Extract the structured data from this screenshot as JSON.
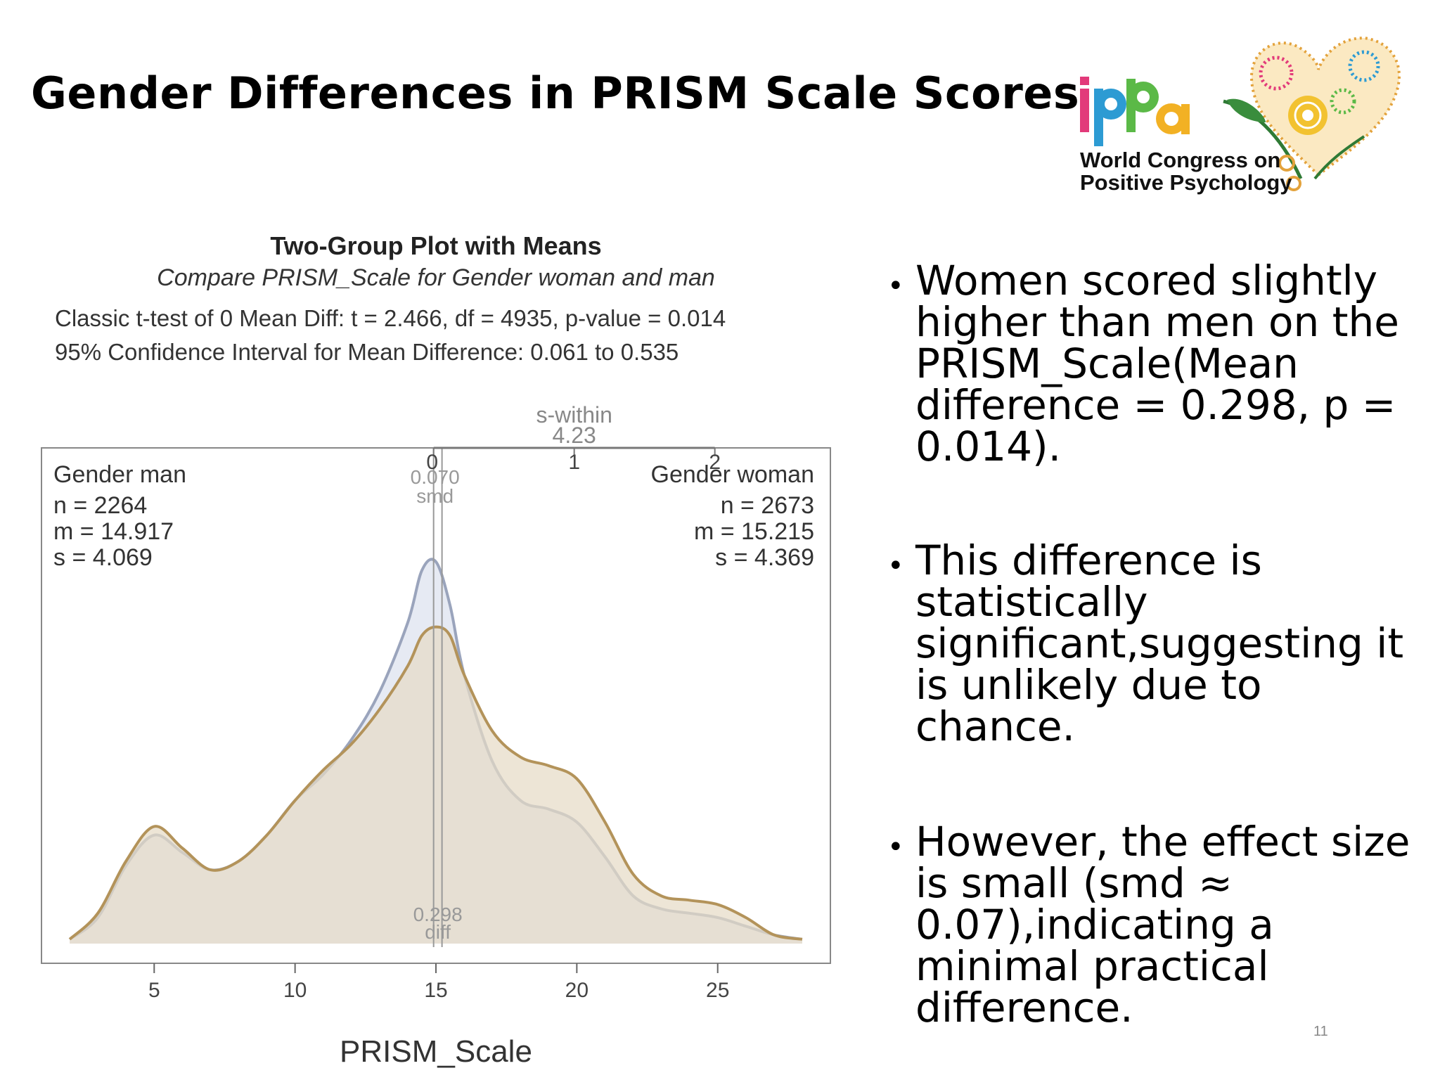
{
  "slide": {
    "title": "Gender Differences in PRISM Scale Scores",
    "page_number": "11",
    "logo": {
      "mark": "ippa",
      "line1": "World Congress on",
      "line2": "Positive Psychology",
      "icon": "heart-flower-icon"
    },
    "bullets": [
      "Women scored slightly higher than men on the PRISM_Scale(Mean difference = 0.298, p = 0.014).",
      "This difference is statistically significant,suggesting it is unlikely due to chance.",
      "However, the effect size is small (smd ≈ 0.07),indicating a minimal practical difference."
    ]
  },
  "chart_data": {
    "type": "area",
    "title": "Two-Group Plot with Means",
    "subtitle": "Compare PRISM_Scale for Gender woman and man",
    "stats_line1": "Classic t-test of 0 Mean Diff:   t = 2.466,  df = 4935,   p-value = 0.014",
    "stats_line2": "95% Confidence Interval for Mean Difference:  0.061 to 0.535",
    "xlabel": "PRISM_Scale",
    "xlim": [
      1,
      29
    ],
    "ylim": [
      0,
      0.1
    ],
    "x_ticks": [
      "5",
      "10",
      "15",
      "20",
      "25"
    ],
    "smd_scale": {
      "label": "s-within",
      "value": "4.23",
      "ticks": [
        "0",
        "1",
        "2"
      ],
      "smd_value": "0.070",
      "smd_label": "smd"
    },
    "diff": {
      "value": "0.298",
      "label": "diff"
    },
    "groups": [
      {
        "label": "Gender man",
        "n": "n = 2264",
        "m": "m = 14.917",
        "s": "s = 4.069",
        "mean": 14.917,
        "line": "#9aa4bc",
        "fill": "#dde2ee"
      },
      {
        "label": "Gender woman",
        "n": "n = 2673",
        "m": "m = 15.215",
        "s": "s = 4.369",
        "mean": 15.215,
        "line": "#b3935a",
        "fill": "#e6dbc6"
      }
    ],
    "series": [
      {
        "name": "Gender man",
        "x": [
          2,
          3,
          4,
          5,
          6,
          7,
          8,
          9,
          10,
          11,
          12,
          13,
          14,
          14.5,
          15,
          15.5,
          16,
          17,
          18,
          19,
          20,
          21,
          22,
          23,
          24,
          25,
          26,
          27,
          28
        ],
        "y": [
          0.001,
          0.006,
          0.018,
          0.025,
          0.021,
          0.017,
          0.019,
          0.025,
          0.033,
          0.039,
          0.047,
          0.058,
          0.074,
          0.086,
          0.088,
          0.078,
          0.062,
          0.042,
          0.033,
          0.031,
          0.028,
          0.02,
          0.011,
          0.008,
          0.007,
          0.006,
          0.004,
          0.002,
          0.001
        ]
      },
      {
        "name": "Gender woman",
        "x": [
          2,
          3,
          4,
          5,
          6,
          7,
          8,
          9,
          10,
          11,
          12,
          13,
          14,
          14.5,
          15,
          15.5,
          16,
          17,
          18,
          19,
          20,
          21,
          22,
          23,
          24,
          25,
          26,
          27,
          28
        ],
        "y": [
          0.001,
          0.007,
          0.019,
          0.027,
          0.022,
          0.017,
          0.019,
          0.025,
          0.033,
          0.04,
          0.046,
          0.054,
          0.064,
          0.071,
          0.073,
          0.071,
          0.062,
          0.049,
          0.043,
          0.041,
          0.038,
          0.028,
          0.016,
          0.011,
          0.01,
          0.009,
          0.006,
          0.002,
          0.001
        ]
      }
    ]
  }
}
